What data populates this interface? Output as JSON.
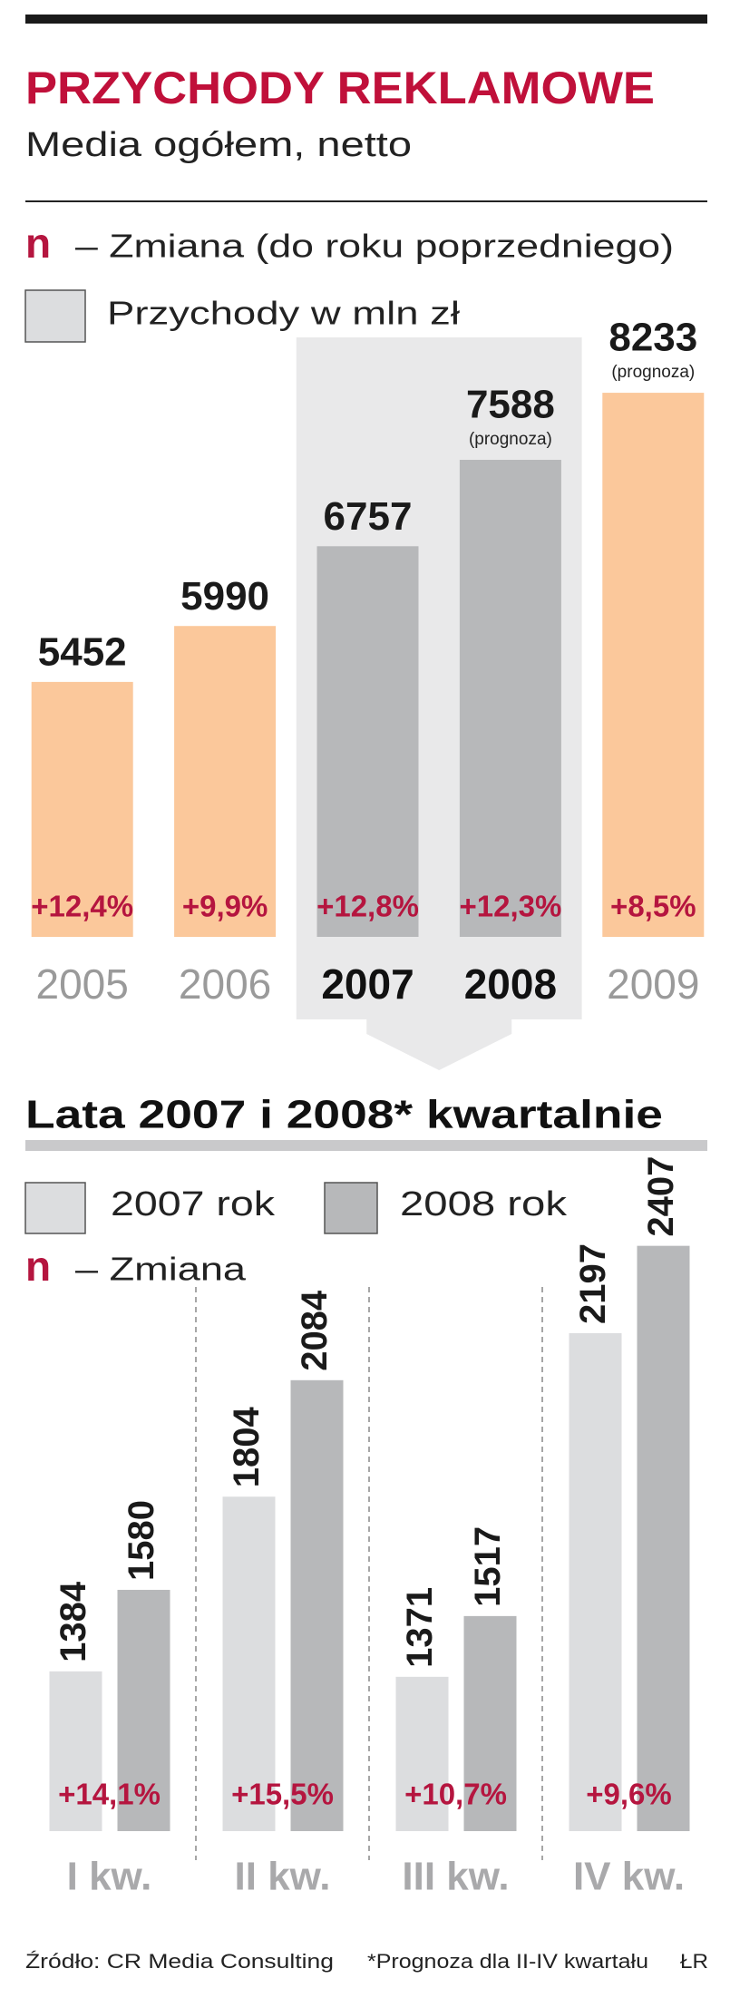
{
  "header": {
    "title": "PRZYCHODY REKLAMOWE",
    "subtitle": "Media ogółem, netto"
  },
  "chart_data": [
    {
      "type": "bar",
      "categories": [
        "2005",
        "2006",
        "2007",
        "2008",
        "2009"
      ],
      "series": [
        {
          "name": "Przychody w mln zł",
          "color": "#dcdddf",
          "values": [
            5452,
            5990,
            6757,
            7588,
            8233
          ],
          "notes": [
            null,
            null,
            null,
            "(prognoza)",
            "(prognoza)"
          ]
        }
      ],
      "colors": [
        "#fbc89b",
        "#fbc89b",
        "#b7b8ba",
        "#b7b8ba",
        "#fbc89b"
      ],
      "highlight": [
        false,
        false,
        true,
        true,
        false
      ],
      "changes": {
        "marker": "n",
        "name": "– Zmiana (do roku poprzedniego)",
        "color": "#b5153f",
        "values": [
          12.4,
          9.9,
          12.8,
          12.3,
          8.5
        ],
        "value_labels": [
          "+12,4%",
          "+9,9%",
          "+12,8%",
          "+12,3%",
          "+8,5%"
        ]
      },
      "ylim": [
        3000,
        8600
      ]
    },
    {
      "type": "grouped_bar",
      "title": "Lata 2007 i 2008* kwartalnie",
      "categories": [
        "I kw.",
        "II kw.",
        "III kw.",
        "IV kw."
      ],
      "series": [
        {
          "name": "2007 rok",
          "color": "#dcdddf",
          "values": [
            1384,
            1804,
            1371,
            2197
          ]
        },
        {
          "name": "2008 rok",
          "color": "#b7b8ba",
          "values": [
            1580,
            2084,
            1517,
            2407
          ]
        }
      ],
      "changes": {
        "marker": "n",
        "name": "– Zmiana",
        "color": "#b5153f",
        "values": [
          14.1,
          15.5,
          10.7,
          9.6
        ],
        "value_labels": [
          "+14,1%",
          "+15,5%",
          "+10,7%",
          "+9,6%"
        ]
      },
      "ylim": [
        1000,
        2500
      ]
    }
  ],
  "footer": {
    "source": "Źródło: CR Media Consulting",
    "footnote": "*Prognoza dla II-IV kwartału",
    "credit": "ŁR"
  }
}
